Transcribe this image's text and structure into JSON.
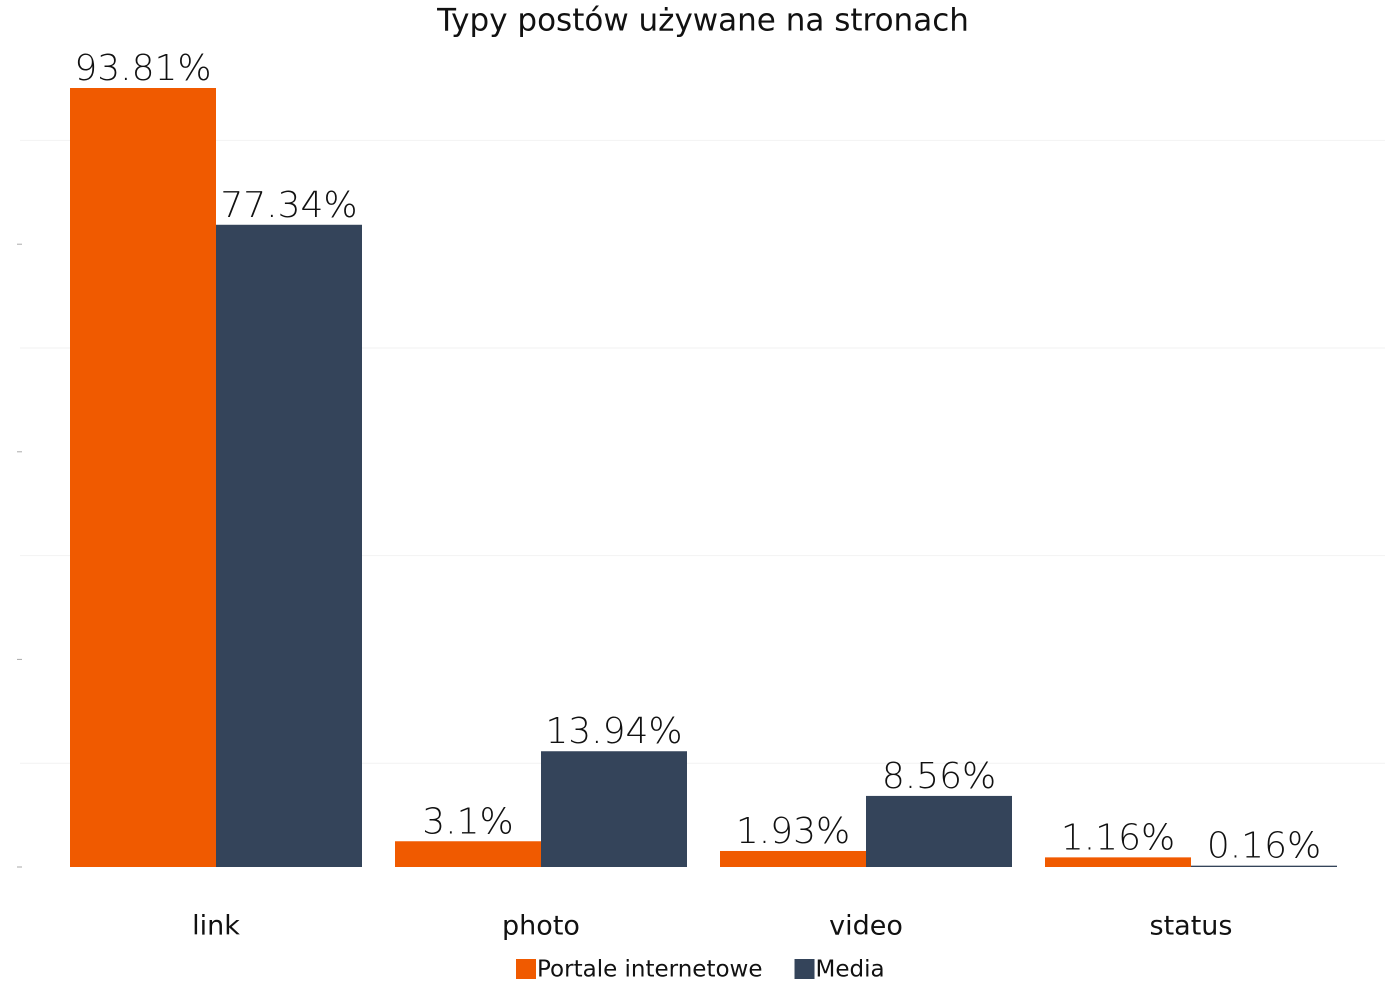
{
  "chart_data": {
    "type": "bar",
    "title": "Typy postów używane na stronach",
    "categories": [
      "link",
      "photo",
      "video",
      "status"
    ],
    "series": [
      {
        "name": "Portale internetowe",
        "color": "#f05a00",
        "values": [
          93.81,
          3.1,
          1.93,
          1.16
        ],
        "value_labels": [
          "93.81%",
          "3.1%",
          "1.93%",
          "1.16%"
        ]
      },
      {
        "name": "Media",
        "color": "#34445a",
        "values": [
          77.34,
          13.94,
          8.56,
          0.16
        ],
        "value_labels": [
          "77.34%",
          "13.94%",
          "8.56%",
          "0.16%"
        ]
      }
    ],
    "ylim": [
      0,
      100
    ],
    "yticks": [
      0,
      25,
      50,
      75
    ],
    "grid_lines": [
      12.5,
      37.5,
      62.5,
      87.5
    ],
    "grid": true,
    "legend": "bottom"
  }
}
